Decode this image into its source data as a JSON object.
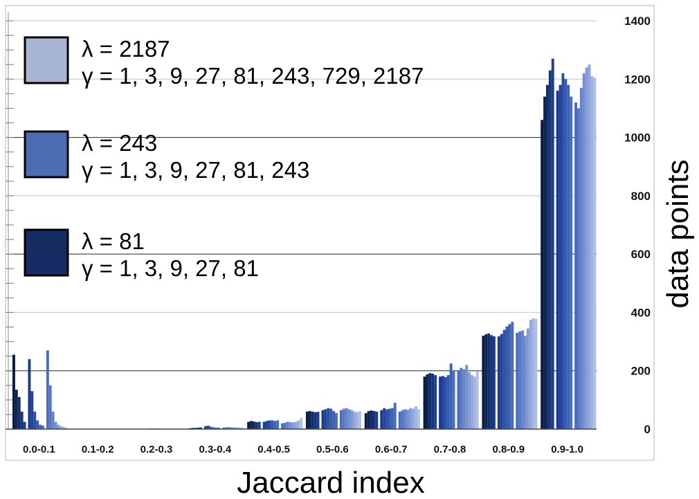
{
  "chart_data": {
    "type": "bar",
    "title": "",
    "xlabel": "Jaccard index",
    "ylabel": "data points",
    "ylim": [
      0,
      1400
    ],
    "yticks": [
      "0",
      "200",
      "400",
      "600",
      "800",
      "1000",
      "1200",
      "1400"
    ],
    "grid": true,
    "legend_position": "top-left",
    "categories": [
      "0.0-0.1",
      "0.1-0.2",
      "0.2-0.3",
      "0.3-0.4",
      "0.4-0.5",
      "0.5-0.6",
      "0.6-0.7",
      "0.7-0.8",
      "0.8-0.9",
      "0.9-1.0"
    ],
    "series": [
      {
        "lambda_label": "λ = 81",
        "gamma_label": "γ = 1, 3, 9, 27, 81",
        "colors": [
          "#0b1a3e",
          "#0f2452",
          "#132d66",
          "#17367a",
          "#1b3f8c"
        ],
        "legend_color": "#142c62",
        "values": [
          [
            255,
            135,
            110,
            60,
            25
          ],
          [
            0,
            0,
            0,
            0,
            0
          ],
          [
            1,
            1,
            1,
            1,
            1
          ],
          [
            3,
            4,
            4,
            5,
            6
          ],
          [
            25,
            28,
            26,
            24,
            25
          ],
          [
            60,
            62,
            60,
            58,
            59
          ],
          [
            55,
            62,
            64,
            62,
            60
          ],
          [
            180,
            188,
            192,
            190,
            185
          ],
          [
            320,
            325,
            328,
            322,
            318
          ],
          [
            1060,
            1140,
            1180,
            1230,
            1270
          ]
        ]
      },
      {
        "lambda_label": "λ = 243",
        "gamma_label": "γ = 1, 3, 9, 27, 81, 243",
        "colors": [
          "#1b3a8a",
          "#23449a",
          "#2b4fa6",
          "#3459ae",
          "#3d63b6",
          "#476dbd"
        ],
        "legend_color": "#4a6db4",
        "values": [
          [
            240,
            130,
            60,
            30,
            15,
            12
          ],
          [
            0,
            0,
            0,
            0,
            0,
            0
          ],
          [
            1,
            2,
            2,
            2,
            2,
            2
          ],
          [
            10,
            12,
            8,
            6,
            5,
            5
          ],
          [
            25,
            28,
            30,
            30,
            28,
            30
          ],
          [
            65,
            68,
            72,
            70,
            62,
            55
          ],
          [
            65,
            72,
            68,
            70,
            72,
            90
          ],
          [
            180,
            182,
            178,
            185,
            225,
            200
          ],
          [
            318,
            326,
            340,
            352,
            360,
            368
          ],
          [
            1160,
            1180,
            1220,
            1200,
            1180,
            1140
          ]
        ]
      },
      {
        "lambda_label": "λ = 2187",
        "gamma_label": "γ = 1, 3, 9, 27, 81, 243, 729, 2187",
        "colors": [
          "#4a6cc0",
          "#5877c5",
          "#6683ca",
          "#748fcf",
          "#839bd4",
          "#92a7da",
          "#a2b4e0",
          "#b1c0e6"
        ],
        "legend_color": "#a8b6d3",
        "values": [
          [
            270,
            150,
            60,
            25,
            15,
            10,
            8,
            5
          ],
          [
            0,
            0,
            0,
            0,
            0,
            0,
            0,
            0
          ],
          [
            1,
            1,
            1,
            2,
            2,
            2,
            2,
            2
          ],
          [
            5,
            6,
            7,
            6,
            6,
            6,
            6,
            5
          ],
          [
            20,
            22,
            25,
            24,
            23,
            25,
            30,
            38
          ],
          [
            65,
            70,
            72,
            68,
            65,
            60,
            58,
            62
          ],
          [
            60,
            65,
            68,
            66,
            72,
            70,
            78,
            68
          ],
          [
            200,
            210,
            205,
            220,
            195,
            185,
            180,
            198
          ],
          [
            330,
            335,
            338,
            320,
            345,
            375,
            380,
            378
          ],
          [
            1120,
            1100,
            1170,
            1220,
            1240,
            1250,
            1210,
            1205
          ]
        ]
      }
    ]
  }
}
